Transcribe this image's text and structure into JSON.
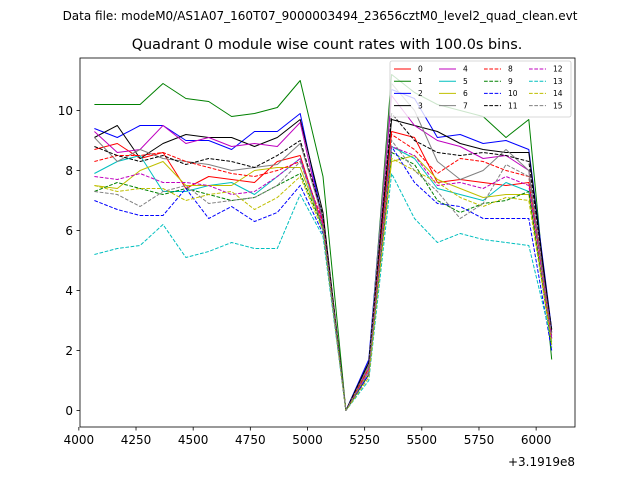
{
  "figure": {
    "suptitle": "Data file: modeM0/AS1A07_160T07_9000003494_23656cztM0_level2_quad_clean.evt"
  },
  "chart_data": {
    "type": "line",
    "title": "Quadrant 0 module wise count rates with 100.0s bins.",
    "xlabel": "",
    "ylabel": "",
    "x_offset_label": "+3.1919e8",
    "xlim": [
      4005,
      6170
    ],
    "ylim": [
      -0.55,
      11.75
    ],
    "xticks": [
      4000,
      4250,
      4500,
      4750,
      5000,
      5250,
      5500,
      5750,
      6000
    ],
    "yticks": [
      0,
      2,
      4,
      6,
      8,
      10
    ],
    "legend_position": "upper-right",
    "x": [
      4068,
      4168,
      4268,
      4368,
      4468,
      4568,
      4668,
      4768,
      4868,
      4968,
      5068,
      5168,
      5268,
      5368,
      5468,
      5568,
      5668,
      5768,
      5868,
      5968,
      6068
    ],
    "series": [
      {
        "name": "0",
        "color": "#ff0000",
        "dash": "solid",
        "values": [
          8.7,
          8.9,
          8.4,
          8.6,
          7.4,
          7.8,
          7.7,
          7.6,
          8.3,
          8.5,
          6.1,
          0.0,
          1.2,
          9.3,
          9.1,
          7.6,
          7.7,
          7.6,
          7.5,
          7.6,
          2.6
        ]
      },
      {
        "name": "1",
        "color": "#008000",
        "dash": "solid",
        "values": [
          10.2,
          10.2,
          10.2,
          10.9,
          10.4,
          10.3,
          9.8,
          9.9,
          10.1,
          11.0,
          7.8,
          0.0,
          1.5,
          11.2,
          10.6,
          10.2,
          10.0,
          9.8,
          9.1,
          9.7,
          1.7
        ]
      },
      {
        "name": "2",
        "color": "#0000ff",
        "dash": "solid",
        "values": [
          9.4,
          9.1,
          9.5,
          9.5,
          9.0,
          9.0,
          8.7,
          9.3,
          9.3,
          9.9,
          6.3,
          0.0,
          1.7,
          10.7,
          10.4,
          9.1,
          9.2,
          8.9,
          9.0,
          8.7,
          2.7
        ]
      },
      {
        "name": "3",
        "color": "#000000",
        "dash": "solid",
        "values": [
          9.1,
          9.5,
          8.4,
          8.9,
          9.2,
          9.1,
          9.1,
          8.8,
          9.1,
          9.7,
          6.6,
          0.0,
          1.6,
          9.7,
          9.5,
          9.3,
          8.9,
          8.7,
          8.6,
          8.6,
          2.6
        ]
      },
      {
        "name": "4",
        "color": "#bf00bf",
        "dash": "solid",
        "values": [
          9.3,
          8.6,
          8.7,
          9.5,
          8.9,
          9.1,
          8.8,
          8.9,
          8.8,
          9.6,
          6.2,
          0.0,
          1.4,
          10.5,
          9.5,
          9.0,
          8.8,
          8.4,
          8.5,
          8.0,
          2.5
        ]
      },
      {
        "name": "5",
        "color": "#00bfbf",
        "dash": "solid",
        "values": [
          7.9,
          8.3,
          8.5,
          7.3,
          7.3,
          7.5,
          7.6,
          7.2,
          7.8,
          8.4,
          6.0,
          0.0,
          1.3,
          8.8,
          8.4,
          7.4,
          7.2,
          7.0,
          7.6,
          7.3,
          2.2
        ]
      },
      {
        "name": "6",
        "color": "#bfbf00",
        "dash": "solid",
        "values": [
          7.5,
          7.4,
          8.0,
          8.3,
          7.5,
          7.5,
          7.5,
          8.0,
          8.1,
          8.1,
          6.1,
          0.0,
          1.3,
          8.3,
          8.5,
          7.7,
          7.4,
          7.1,
          7.2,
          7.2,
          2.3
        ]
      },
      {
        "name": "7",
        "color": "#808080",
        "dash": "solid",
        "values": [
          9.1,
          8.3,
          8.7,
          8.4,
          8.3,
          8.2,
          8.0,
          8.1,
          8.2,
          8.9,
          6.4,
          0.0,
          1.5,
          10.9,
          10.0,
          8.3,
          7.7,
          8.0,
          8.7,
          8.0,
          2.4
        ]
      },
      {
        "name": "8",
        "color": "#ff0000",
        "dash": "dashed",
        "values": [
          8.3,
          8.5,
          8.5,
          8.6,
          8.3,
          8.1,
          7.9,
          7.8,
          8.0,
          8.3,
          6.3,
          0.0,
          1.4,
          9.2,
          8.7,
          7.9,
          8.4,
          8.3,
          8.0,
          7.8,
          2.4
        ]
      },
      {
        "name": "9",
        "color": "#008000",
        "dash": "dashed",
        "values": [
          7.3,
          7.6,
          7.4,
          7.2,
          7.4,
          7.2,
          7.0,
          7.1,
          7.5,
          7.9,
          6.1,
          0.0,
          1.2,
          8.6,
          8.2,
          7.0,
          6.6,
          6.9,
          7.0,
          7.3,
          2.1
        ]
      },
      {
        "name": "10",
        "color": "#0000ff",
        "dash": "dashed",
        "values": [
          7.0,
          6.7,
          6.5,
          6.5,
          7.4,
          6.4,
          6.8,
          6.3,
          6.6,
          7.5,
          5.9,
          0.0,
          1.2,
          8.8,
          7.6,
          6.9,
          6.8,
          6.4,
          6.4,
          6.4,
          2.0
        ]
      },
      {
        "name": "11",
        "color": "#000000",
        "dash": "dashed",
        "values": [
          8.8,
          8.5,
          8.3,
          8.5,
          8.2,
          8.4,
          8.3,
          8.1,
          8.5,
          9.0,
          6.5,
          0.0,
          1.6,
          9.9,
          9.0,
          8.6,
          8.5,
          8.6,
          8.5,
          8.3,
          2.7
        ]
      },
      {
        "name": "12",
        "color": "#bf00bf",
        "dash": "dashed",
        "values": [
          7.8,
          7.7,
          7.9,
          7.6,
          7.6,
          7.5,
          7.2,
          7.3,
          7.8,
          8.4,
          6.2,
          0.0,
          1.3,
          8.8,
          8.5,
          7.5,
          7.6,
          7.4,
          7.8,
          7.5,
          2.4
        ]
      },
      {
        "name": "13",
        "color": "#00bfbf",
        "dash": "dashed",
        "values": [
          5.2,
          5.4,
          5.5,
          6.2,
          5.1,
          5.3,
          5.6,
          5.4,
          5.4,
          7.2,
          5.8,
          0.0,
          1.0,
          7.9,
          6.4,
          5.6,
          5.9,
          5.7,
          5.6,
          5.5,
          2.3
        ]
      },
      {
        "name": "14",
        "color": "#bfbf00",
        "dash": "dashed",
        "values": [
          7.5,
          7.3,
          7.4,
          7.4,
          7.0,
          7.2,
          7.3,
          6.7,
          7.1,
          7.8,
          6.0,
          0.0,
          1.1,
          8.4,
          8.0,
          7.6,
          7.1,
          6.8,
          7.1,
          7.0,
          2.2
        ]
      },
      {
        "name": "15",
        "color": "#808080",
        "dash": "dashed",
        "values": [
          7.3,
          7.2,
          6.8,
          7.3,
          7.5,
          6.9,
          7.0,
          7.1,
          7.5,
          8.3,
          6.1,
          0.0,
          1.3,
          9.0,
          8.0,
          7.3,
          6.4,
          6.9,
          8.2,
          7.8,
          2.5
        ]
      }
    ]
  }
}
